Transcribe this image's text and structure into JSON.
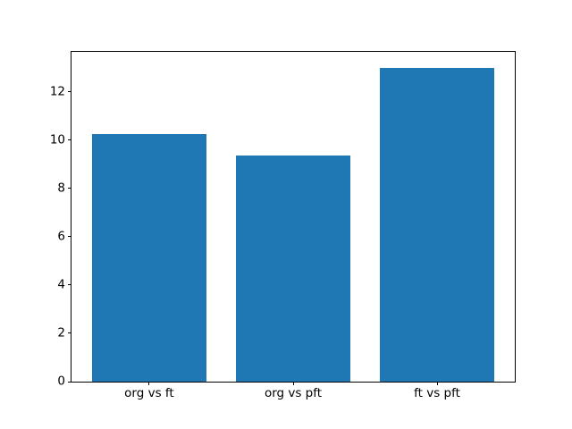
{
  "chart_data": {
    "type": "bar",
    "title": "",
    "xlabel": "",
    "ylabel": "",
    "categories": [
      "org vs ft",
      "org vs pft",
      "ft vs pft"
    ],
    "values": [
      10.25,
      9.35,
      13.0
    ],
    "yticks": [
      0,
      2,
      4,
      6,
      8,
      10,
      12
    ],
    "ylim": [
      0,
      13.65
    ],
    "bar_width": 0.8,
    "x_margin": 0.05,
    "bar_color": "#1f77b4",
    "axis_color": "#000000",
    "text_color": "#000000",
    "background_color": "#ffffff",
    "grid": false,
    "legend": null
  }
}
